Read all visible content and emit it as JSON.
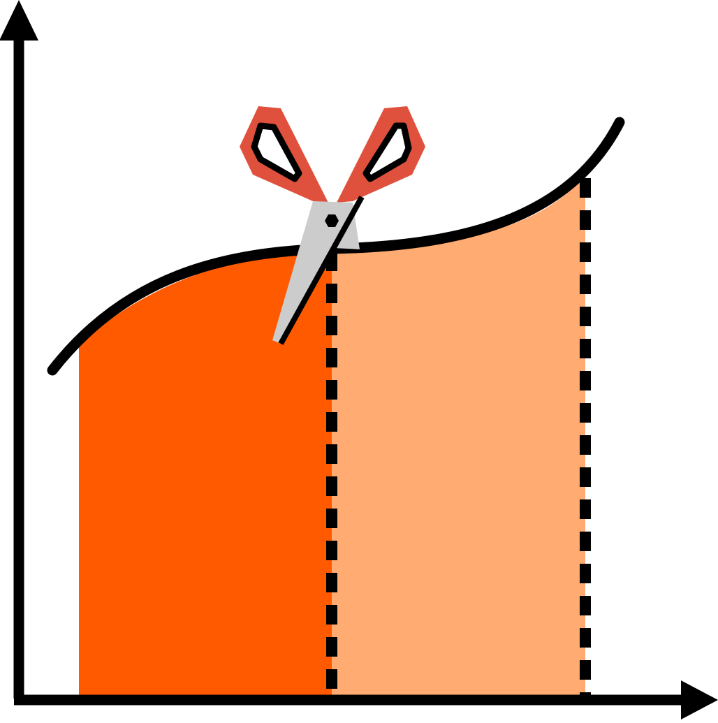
{
  "colors": {
    "background": "#ffffff",
    "axis": "#000000",
    "curve": "#000000",
    "region_left_fill": "#ff5a00",
    "region_right_fill": "#ffab72",
    "divider": "#000000",
    "scissors_handle": "#e0513d",
    "scissors_blade": "#cccccc",
    "scissors_outline": "#000000"
  },
  "icons": {
    "scissors": "scissors-icon",
    "x_arrow": "arrowhead-right-icon",
    "y_arrow": "arrowhead-up-icon"
  }
}
